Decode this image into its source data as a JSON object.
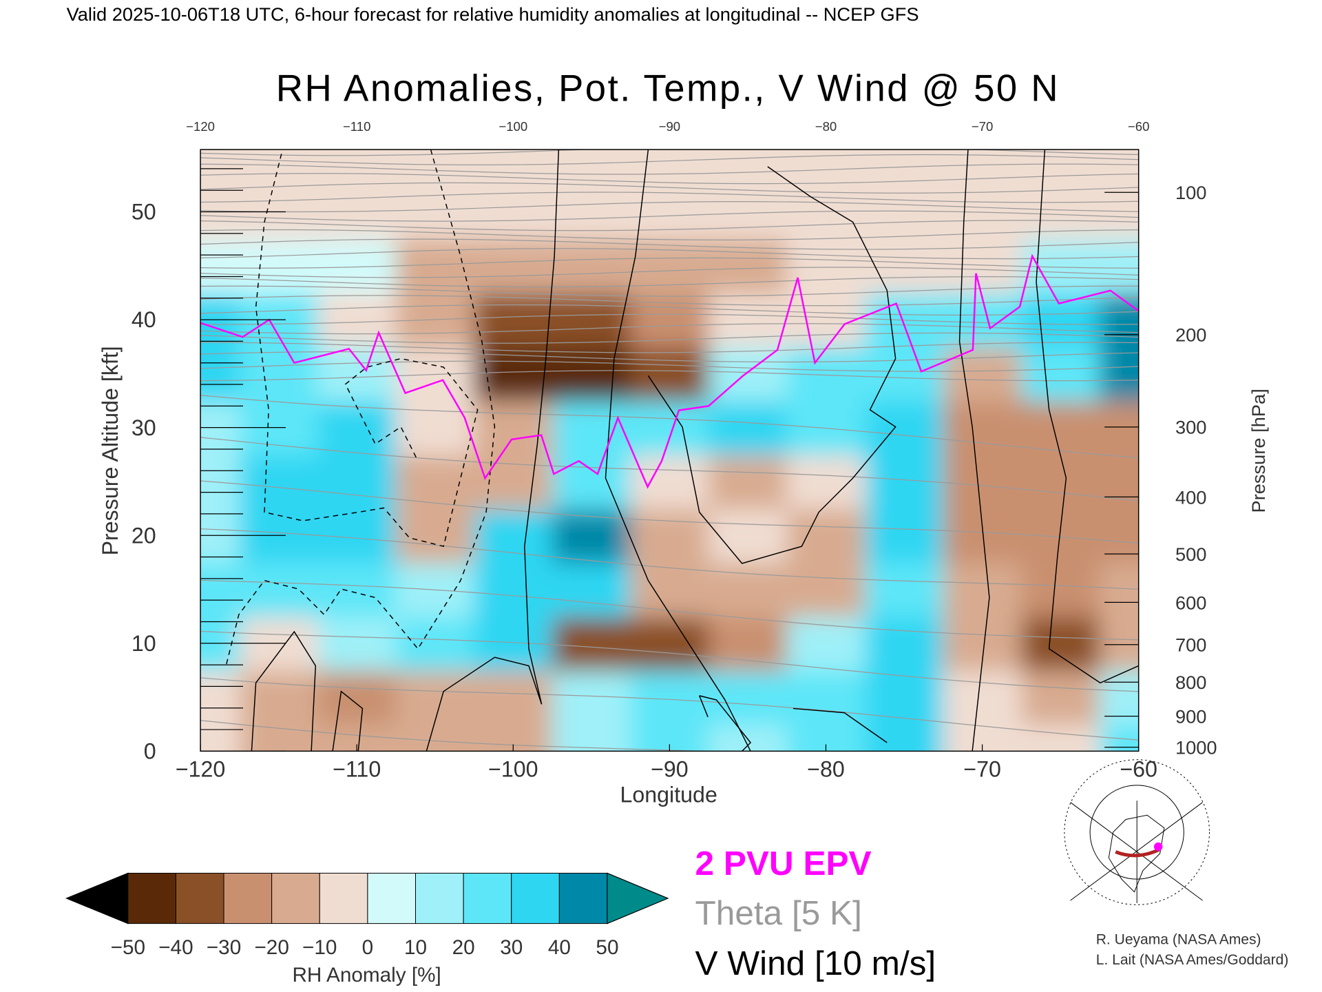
{
  "header": {
    "caption": "Valid 2025-10-06T18 UTC, 6-hour forecast for relative humidity anomalies at longitudinal -- NCEP GFS"
  },
  "chart_data": {
    "type": "heatmap",
    "title": "RH Anomalies, Pot. Temp., V Wind @ 50 N",
    "xlabel": "Longitude",
    "ylabel": "Pressure Altitude [kft]",
    "y2label": "Pressure [hPa]",
    "xlim": [
      -120,
      -60
    ],
    "ylim": [
      0,
      56
    ],
    "x_ticks": [
      "-120",
      "-110",
      "-100",
      "-90",
      "-80",
      "-70",
      "-60"
    ],
    "x_tick_values": [
      -120,
      -110,
      -100,
      -90,
      -80,
      -70,
      -60
    ],
    "y_ticks": [
      "0",
      "10",
      "20",
      "30",
      "40",
      "50"
    ],
    "y_tick_values": [
      0,
      10,
      20,
      30,
      40,
      50
    ],
    "y2_ticks": [
      "100",
      "200",
      "300",
      "400",
      "500",
      "600",
      "700",
      "800",
      "900",
      "1000"
    ],
    "y2_tick_values": [
      100,
      200,
      300,
      400,
      500,
      600,
      700,
      800,
      900,
      1000
    ],
    "grid_lon": [
      -120,
      -115,
      -110,
      -105,
      -100,
      -95,
      -90,
      -85,
      -80,
      -75,
      -70,
      -65,
      -60
    ],
    "grid_alt": [
      0,
      5,
      10,
      15,
      20,
      25,
      30,
      35,
      40,
      45,
      50,
      55
    ],
    "rh_anomaly": [
      [
        -10,
        -15,
        -20,
        -20,
        -15,
        10,
        20,
        15,
        25,
        30,
        -10,
        -10,
        20
      ],
      [
        -10,
        -20,
        -25,
        -15,
        -15,
        15,
        20,
        20,
        25,
        30,
        -10,
        -20,
        10
      ],
      [
        20,
        -10,
        15,
        20,
        30,
        -35,
        -40,
        -25,
        10,
        30,
        -20,
        -35,
        -15
      ],
      [
        20,
        25,
        20,
        15,
        35,
        30,
        -15,
        -20,
        -15,
        25,
        -20,
        -30,
        -20
      ],
      [
        15,
        30,
        30,
        -20,
        30,
        40,
        -20,
        -10,
        -15,
        30,
        -25,
        -25,
        -25
      ],
      [
        10,
        30,
        35,
        -20,
        -15,
        20,
        -10,
        -20,
        -10,
        30,
        -30,
        -30,
        -30
      ],
      [
        15,
        20,
        30,
        -10,
        -20,
        20,
        20,
        30,
        20,
        30,
        -25,
        -25,
        -25
      ],
      [
        30,
        20,
        10,
        -10,
        -45,
        -50,
        -40,
        10,
        20,
        20,
        -15,
        25,
        40
      ],
      [
        30,
        25,
        -10,
        -20,
        -35,
        -40,
        -30,
        -10,
        -10,
        20,
        20,
        35,
        40
      ],
      [
        5,
        5,
        5,
        -20,
        -20,
        -20,
        -20,
        -20,
        -10,
        -10,
        -10,
        10,
        10
      ],
      [
        -5,
        -5,
        -5,
        -8,
        -10,
        -10,
        -10,
        -8,
        -5,
        -5,
        -5,
        -5,
        -5
      ],
      [
        -5,
        -5,
        -5,
        -5,
        -5,
        -5,
        -5,
        -5,
        -5,
        -5,
        -5,
        -5,
        -5
      ]
    ],
    "epv_2pvu": {
      "name": "2 PVU EPV",
      "lon": [
        -120,
        -117.3,
        -115.6,
        -114,
        -110.5,
        -109.4,
        -108.6,
        -106.9,
        -104.5,
        -103.1,
        -101.8,
        -100.1,
        -98.2,
        -97.4,
        -95.8,
        -94.6,
        -93.3,
        -91.4,
        -90.5,
        -89.4,
        -87.5,
        -85.3,
        -83.1,
        -81.8,
        -80.7,
        -78.8,
        -75.5,
        -73.9,
        -70.6,
        -70.4,
        -69.5,
        -67.6,
        -66.8,
        -65.1,
        -61.8,
        -60
      ],
      "alt": [
        39.7,
        38.4,
        40,
        36,
        37.3,
        35.3,
        38.8,
        33.2,
        34.4,
        30.9,
        25.3,
        28.9,
        29.3,
        25.7,
        26.9,
        25.7,
        30.9,
        24.5,
        26.9,
        31.6,
        32,
        34.8,
        37.2,
        43.9,
        36,
        39.6,
        41.5,
        35.2,
        37.2,
        44.3,
        39.2,
        41.2,
        45.9,
        41.5,
        42.7,
        40.8
      ]
    },
    "colorbar": {
      "label": "RH Anomaly [%]",
      "tick_labels": [
        "-50",
        "-40",
        "-30",
        "-20",
        "-10",
        "0",
        "10",
        "20",
        "30",
        "40",
        "50"
      ],
      "levels": [
        -50,
        -40,
        -30,
        -20,
        -10,
        0,
        10,
        20,
        30,
        40,
        50
      ],
      "colors": [
        "#000000",
        "#5a2a08",
        "#8a5028",
        "#c99070",
        "#d8ab90",
        "#f0ddd2",
        "#d2fafa",
        "#9ff0f8",
        "#5de6f8",
        "#2ed6f2",
        "#0088a8",
        "#008b8b"
      ]
    },
    "legend": {
      "epv": "2 PVU EPV",
      "theta": "Theta [5 K]",
      "wind": "V Wind [10 m/s]",
      "epv_color": "#ff00ff",
      "theta_color": "#9a9a9a",
      "wind_color": "#000000"
    }
  },
  "credits": {
    "line1": "R. Ueyama (NASA Ames)",
    "line2": "L. Lait (NASA Ames/Goddard)"
  }
}
